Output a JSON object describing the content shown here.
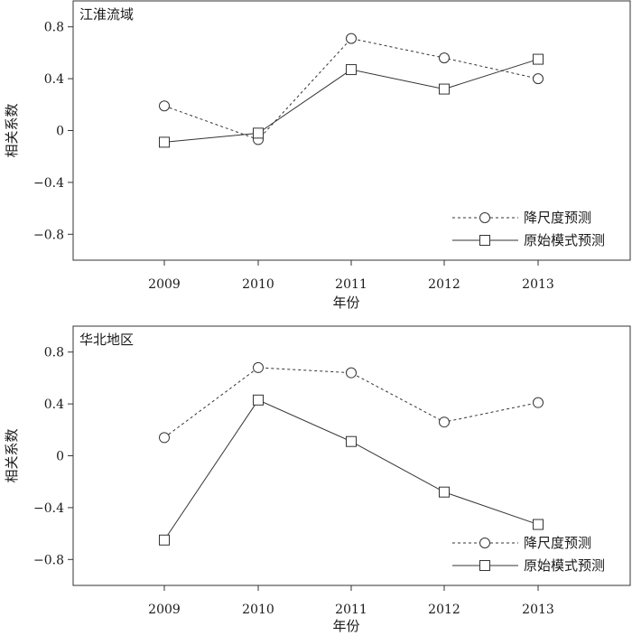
{
  "chart_data": [
    {
      "type": "line",
      "title": "江淮流域",
      "xlabel": "年份",
      "ylabel": "相关系数",
      "categories": [
        "2009",
        "2010",
        "2011",
        "2012",
        "2013"
      ],
      "ylim": [
        -1.0,
        1.0
      ],
      "yticks": [
        0.8,
        0.4,
        0,
        -0.4,
        -0.8
      ],
      "ytick_labels": [
        "0.8",
        "0.4",
        "0",
        "−0.4",
        "−0.8"
      ],
      "legend_position": "bottom-right",
      "series": [
        {
          "name": "降尺度预测",
          "style": "dashed",
          "marker": "circle",
          "values": [
            0.19,
            -0.07,
            0.71,
            0.56,
            0.4
          ]
        },
        {
          "name": "原始模式预测",
          "style": "solid",
          "marker": "square",
          "values": [
            -0.09,
            -0.02,
            0.47,
            0.32,
            0.55
          ]
        }
      ]
    },
    {
      "type": "line",
      "title": "华北地区",
      "xlabel": "年份",
      "ylabel": "相关系数",
      "categories": [
        "2009",
        "2010",
        "2011",
        "2012",
        "2013"
      ],
      "ylim": [
        -1.0,
        1.0
      ],
      "yticks": [
        0.8,
        0.4,
        0,
        -0.4,
        -0.8
      ],
      "ytick_labels": [
        "0.8",
        "0.4",
        "0",
        "−0.4",
        "−0.8"
      ],
      "legend_position": "bottom-right",
      "series": [
        {
          "name": "降尺度预测",
          "style": "dashed",
          "marker": "circle",
          "values": [
            0.14,
            0.68,
            0.64,
            0.26,
            0.41
          ]
        },
        {
          "name": "原始模式预测",
          "style": "solid",
          "marker": "square",
          "values": [
            -0.65,
            0.43,
            0.11,
            -0.28,
            -0.53
          ]
        }
      ]
    }
  ]
}
